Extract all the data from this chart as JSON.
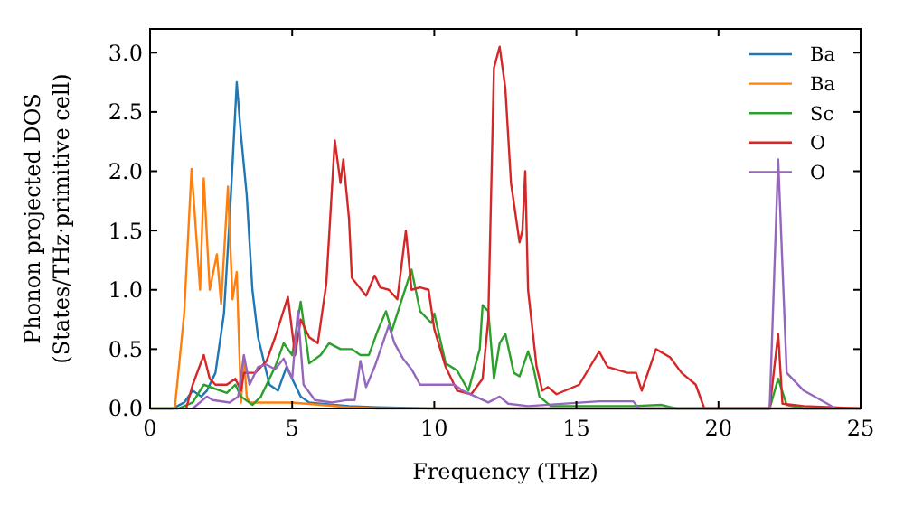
{
  "chart_data": {
    "type": "line",
    "xlabel": "Frequency (THz)",
    "ylabel": "Phonon projected DOS\n(States/THz·primitive cell)",
    "xlim": [
      0,
      25
    ],
    "ylim": [
      0,
      3.2
    ],
    "xticks": [
      0,
      5,
      10,
      15,
      20,
      25
    ],
    "yticks": [
      {
        "value": 0,
        "label": "0.0"
      },
      0.5,
      {
        "value": 1,
        "label": "1.0"
      },
      1.5,
      {
        "value": 2,
        "label": "2.0"
      },
      2.5,
      {
        "value": 3,
        "label": "3.0"
      }
    ],
    "grid": false,
    "legend": "top right",
    "marker": "none",
    "line_style": "solid",
    "series": [
      {
        "name": "Ba",
        "color": "#1f77b4",
        "x": [
          0,
          0.8,
          1.2,
          1.5,
          1.8,
          2.0,
          2.3,
          2.6,
          2.8,
          3.05,
          3.2,
          3.4,
          3.6,
          3.8,
          4.0,
          4.2,
          4.5,
          4.8,
          5.0,
          5.3,
          5.6,
          6,
          7,
          8,
          10,
          25
        ],
        "values": [
          0,
          0,
          0.05,
          0.15,
          0.1,
          0.15,
          0.3,
          0.8,
          1.6,
          2.75,
          2.3,
          1.8,
          1.0,
          0.6,
          0.4,
          0.2,
          0.15,
          0.35,
          0.25,
          0.1,
          0.05,
          0.04,
          0.02,
          0.01,
          0,
          0
        ]
      },
      {
        "name": "Ba",
        "color": "#ff7f0e",
        "x": [
          0,
          0.87,
          1.2,
          1.46,
          1.76,
          1.89,
          2.1,
          2.35,
          2.5,
          2.74,
          2.9,
          3.05,
          3.2,
          3.3,
          3.4,
          3.5,
          4,
          5,
          6,
          7,
          8,
          25
        ],
        "values": [
          0,
          0,
          0.8,
          2.02,
          1.0,
          1.94,
          1.0,
          1.3,
          0.88,
          1.87,
          0.92,
          1.15,
          0.05,
          0.44,
          0.1,
          0.05,
          0.05,
          0.05,
          0.03,
          0.01,
          0,
          0
        ]
      },
      {
        "name": "Sc",
        "color": "#2ca02c",
        "x": [
          0,
          1.0,
          1.5,
          1.89,
          2.7,
          3.0,
          3.2,
          3.6,
          3.9,
          4.4,
          4.7,
          5.0,
          5.3,
          5.6,
          6.0,
          6.3,
          6.7,
          7.1,
          7.4,
          7.7,
          8.0,
          8.3,
          8.5,
          8.9,
          9.2,
          9.5,
          9.9,
          10.0,
          10.4,
          10.8,
          11.2,
          11.6,
          11.7,
          11.9,
          12.1,
          12.3,
          12.5,
          12.8,
          13.0,
          13.3,
          13.5,
          13.7,
          14.1,
          17,
          18,
          18.5,
          21.8,
          22.1,
          22.4,
          23,
          25
        ],
        "values": [
          0,
          0,
          0.05,
          0.2,
          0.13,
          0.2,
          0.1,
          0.03,
          0.1,
          0.35,
          0.55,
          0.45,
          0.9,
          0.38,
          0.45,
          0.55,
          0.5,
          0.5,
          0.45,
          0.45,
          0.65,
          0.82,
          0.65,
          0.95,
          1.17,
          0.82,
          0.72,
          0.8,
          0.38,
          0.32,
          0.15,
          0.5,
          0.87,
          0.82,
          0.25,
          0.55,
          0.63,
          0.3,
          0.27,
          0.48,
          0.33,
          0.1,
          0.02,
          0.02,
          0.03,
          0,
          0,
          0.25,
          0.03,
          0,
          0
        ]
      },
      {
        "name": "O",
        "color": "#d62728",
        "x": [
          1.27,
          1.5,
          1.89,
          2.1,
          2.3,
          2.7,
          3.0,
          3.2,
          3.3,
          3.7,
          4.1,
          4.4,
          4.85,
          5.1,
          5.3,
          5.6,
          5.9,
          6.2,
          6.5,
          6.7,
          6.8,
          7.0,
          7.1,
          7.6,
          7.9,
          8.1,
          8.4,
          8.7,
          9.0,
          9.2,
          9.5,
          9.8,
          10.0,
          10.4,
          10.8,
          11.3,
          11.7,
          11.9,
          12.1,
          12.3,
          12.5,
          12.7,
          13.0,
          13.1,
          13.2,
          13.3,
          13.6,
          13.8,
          14.0,
          14.3,
          15.1,
          15.6,
          15.8,
          16.1,
          16.8,
          17.1,
          17.3,
          17.8,
          18.3,
          18.7,
          19.2,
          19.5,
          21.8,
          22.1,
          22.25,
          23,
          25
        ],
        "values": [
          0,
          0.2,
          0.45,
          0.25,
          0.2,
          0.2,
          0.25,
          0.15,
          0.3,
          0.3,
          0.4,
          0.6,
          0.94,
          0.45,
          0.75,
          0.6,
          0.55,
          1.05,
          2.26,
          1.9,
          2.1,
          1.6,
          1.1,
          0.95,
          1.12,
          1.02,
          1.0,
          0.92,
          1.5,
          1.0,
          1.02,
          1.0,
          0.67,
          0.35,
          0.15,
          0.12,
          0.25,
          0.75,
          2.87,
          3.05,
          2.7,
          1.9,
          1.4,
          1.5,
          2.0,
          1.0,
          0.35,
          0.15,
          0.18,
          0.12,
          0.2,
          0.4,
          0.48,
          0.35,
          0.3,
          0.3,
          0.15,
          0.5,
          0.43,
          0.3,
          0.2,
          0,
          0,
          0.63,
          0.04,
          0.02,
          0
        ]
      },
      {
        "name": "O",
        "color": "#9467bd",
        "x": [
          1.5,
          2.0,
          2.2,
          2.8,
          3.1,
          3.3,
          3.5,
          3.8,
          4.1,
          4.4,
          4.7,
          5.0,
          5.2,
          5.4,
          5.8,
          6.4,
          6.9,
          7.2,
          7.4,
          7.6,
          7.9,
          8.4,
          8.6,
          8.9,
          9.2,
          9.5,
          10.2,
          10.7,
          11.0,
          11.9,
          12.3,
          12.6,
          13.3,
          15.8,
          17,
          17.2,
          21.8,
          22.1,
          22.4,
          23.0,
          23.9,
          24.1
        ],
        "values": [
          0,
          0.1,
          0.07,
          0.05,
          0.1,
          0.45,
          0.2,
          0.35,
          0.37,
          0.33,
          0.42,
          0.25,
          0.82,
          0.2,
          0.07,
          0.05,
          0.07,
          0.07,
          0.4,
          0.18,
          0.35,
          0.7,
          0.55,
          0.42,
          0.33,
          0.2,
          0.2,
          0.2,
          0.15,
          0.05,
          0.1,
          0.04,
          0.02,
          0.06,
          0.06,
          0,
          0,
          2.1,
          0.3,
          0.15,
          0.03,
          0
        ]
      }
    ]
  }
}
